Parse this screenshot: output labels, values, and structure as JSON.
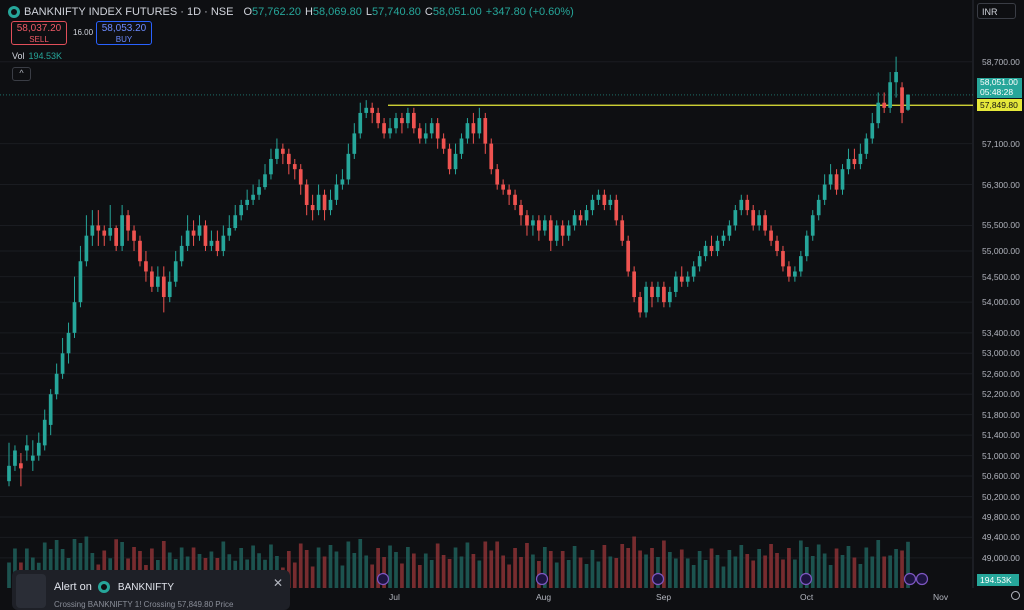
{
  "header": {
    "symbol": "BANKNIFTY INDEX FUTURES · 1D · NSE",
    "o_label": "O",
    "o": "57,762.20",
    "h_label": "H",
    "h": "58,069.80",
    "l_label": "L",
    "l": "57,740.80",
    "c_label": "C",
    "c": "58,051.00",
    "change": "+347.80 (+0.60%)"
  },
  "trade": {
    "sell_price": "58,037.20",
    "sell_label": "SELL",
    "spread": "16.00",
    "buy_price": "58,053.20",
    "buy_label": "BUY"
  },
  "volume": {
    "label": "Vol",
    "value": "194.53K"
  },
  "currency": "INR",
  "price_axis": [
    "58,700.00",
    "57,100.00",
    "56,300.00",
    "55,500.00",
    "55,000.00",
    "54,500.00",
    "54,000.00",
    "53,400.00",
    "53,000.00",
    "52,600.00",
    "52,200.00",
    "51,800.00",
    "51,400.00",
    "51,000.00",
    "50,600.00",
    "50,200.00",
    "49,800.00",
    "49,400.00",
    "49,000.00"
  ],
  "last_price_tag": {
    "price": "58,051.00",
    "countdown": "05:48:28"
  },
  "hline_tag": "57,849.80",
  "volume_tag": "194.53K",
  "months": [
    "Jul",
    "Aug",
    "Sep",
    "Oct",
    "Nov"
  ],
  "alert": {
    "title": "Alert on",
    "ticker": "BANKNIFTY",
    "subtitle": "Crossing BANKNIFTY 1! Crossing 57,849.80 Price"
  },
  "colors": {
    "up": "#26a69a",
    "down": "#ef5350",
    "hline": "#e5e83a",
    "background": "#0e0f12"
  },
  "chart_data": {
    "type": "candlestick",
    "symbol": "BANKNIFTY INDEX FUTURES",
    "interval": "1D",
    "ylim": [
      48900,
      58950
    ],
    "hline": 57849.8,
    "candles": [
      [
        50500,
        50800,
        51250,
        50400
      ],
      [
        50800,
        51100,
        51200,
        50700
      ],
      [
        50850,
        50750,
        51050,
        50400
      ],
      [
        51100,
        51200,
        51400,
        50900
      ],
      [
        50900,
        51000,
        51300,
        50700
      ],
      [
        51000,
        51250,
        51450,
        50900
      ],
      [
        51200,
        51700,
        51900,
        51100
      ],
      [
        51600,
        52200,
        52300,
        51400
      ],
      [
        52200,
        52600,
        52800,
        52100
      ],
      [
        52600,
        53000,
        53300,
        52500
      ],
      [
        53000,
        53400,
        53600,
        52800
      ],
      [
        53400,
        54000,
        54500,
        53300
      ],
      [
        54000,
        54800,
        55100,
        53900
      ],
      [
        54800,
        55300,
        55700,
        54700
      ],
      [
        55300,
        55500,
        55800,
        55100
      ],
      [
        55500,
        55400,
        55800,
        55100
      ],
      [
        55400,
        55300,
        55500,
        55100
      ],
      [
        55300,
        55450,
        55900,
        55200
      ],
      [
        55450,
        55100,
        55500,
        55000
      ],
      [
        55100,
        55700,
        55900,
        55000
      ],
      [
        55700,
        55400,
        55800,
        55200
      ],
      [
        55400,
        55200,
        55500,
        55000
      ],
      [
        55200,
        54800,
        55300,
        54700
      ],
      [
        54800,
        54600,
        55000,
        54400
      ],
      [
        54600,
        54300,
        54700,
        54200
      ],
      [
        54300,
        54500,
        54700,
        54200
      ],
      [
        54500,
        54100,
        54700,
        53800
      ],
      [
        54100,
        54400,
        54600,
        54000
      ],
      [
        54400,
        54800,
        55000,
        54300
      ],
      [
        54800,
        55100,
        55300,
        54700
      ],
      [
        55100,
        55400,
        55700,
        55000
      ],
      [
        55400,
        55300,
        55600,
        55100
      ],
      [
        55300,
        55500,
        55700,
        55200
      ],
      [
        55500,
        55100,
        55600,
        55000
      ],
      [
        55100,
        55200,
        55400,
        55000
      ],
      [
        55200,
        55000,
        55400,
        54900
      ],
      [
        55000,
        55300,
        55500,
        54900
      ],
      [
        55300,
        55450,
        55700,
        55200
      ],
      [
        55450,
        55700,
        55900,
        55400
      ],
      [
        55700,
        55900,
        56000,
        55600
      ],
      [
        55900,
        56000,
        56200,
        55800
      ],
      [
        56000,
        56100,
        56300,
        55900
      ],
      [
        56100,
        56250,
        56400,
        56000
      ],
      [
        56250,
        56500,
        56700,
        56200
      ],
      [
        56500,
        56800,
        57000,
        56400
      ],
      [
        56800,
        57000,
        57200,
        56700
      ],
      [
        57000,
        56900,
        57100,
        56700
      ],
      [
        56900,
        56700,
        57000,
        56500
      ],
      [
        56700,
        56600,
        56800,
        56400
      ],
      [
        56600,
        56300,
        56700,
        56100
      ],
      [
        56300,
        55900,
        56400,
        55700
      ],
      [
        55900,
        55800,
        56100,
        55600
      ],
      [
        55800,
        56100,
        56300,
        55700
      ],
      [
        56100,
        55800,
        56200,
        55600
      ],
      [
        55800,
        56000,
        56200,
        55700
      ],
      [
        56000,
        56300,
        56500,
        55900
      ],
      [
        56300,
        56400,
        56600,
        56200
      ],
      [
        56400,
        56900,
        57100,
        56300
      ],
      [
        56900,
        57300,
        57500,
        56800
      ],
      [
        57300,
        57700,
        57900,
        57200
      ],
      [
        57700,
        57800,
        57950,
        57600
      ],
      [
        57800,
        57700,
        57900,
        57500
      ],
      [
        57700,
        57500,
        57800,
        57400
      ],
      [
        57500,
        57300,
        57600,
        57200
      ],
      [
        57300,
        57400,
        57600,
        57200
      ],
      [
        57400,
        57600,
        57700,
        57300
      ],
      [
        57600,
        57500,
        57700,
        57300
      ],
      [
        57500,
        57700,
        57800,
        57400
      ],
      [
        57700,
        57400,
        57800,
        57300
      ],
      [
        57400,
        57200,
        57500,
        57100
      ],
      [
        57200,
        57300,
        57500,
        57100
      ],
      [
        57300,
        57500,
        57600,
        57200
      ],
      [
        57500,
        57200,
        57600,
        57000
      ],
      [
        57200,
        57000,
        57300,
        56900
      ],
      [
        57000,
        56600,
        57100,
        56500
      ],
      [
        56600,
        56900,
        57100,
        56500
      ],
      [
        56900,
        57200,
        57300,
        56800
      ],
      [
        57200,
        57500,
        57600,
        57100
      ],
      [
        57500,
        57300,
        57700,
        57100
      ],
      [
        57300,
        57600,
        57800,
        57200
      ],
      [
        57600,
        57100,
        57700,
        56900
      ],
      [
        57100,
        56600,
        57200,
        56500
      ],
      [
        56600,
        56300,
        56700,
        56200
      ],
      [
        56300,
        56200,
        56400,
        56100
      ],
      [
        56200,
        56100,
        56300,
        55900
      ],
      [
        56100,
        55900,
        56200,
        55800
      ],
      [
        55900,
        55700,
        56000,
        55500
      ],
      [
        55700,
        55500,
        55800,
        55300
      ],
      [
        55500,
        55600,
        55700,
        55300
      ],
      [
        55600,
        55400,
        55700,
        55200
      ],
      [
        55400,
        55600,
        55700,
        55300
      ],
      [
        55600,
        55200,
        55700,
        55000
      ],
      [
        55200,
        55500,
        55600,
        55100
      ],
      [
        55500,
        55300,
        55600,
        55100
      ],
      [
        55300,
        55500,
        55600,
        55200
      ],
      [
        55500,
        55700,
        55800,
        55400
      ],
      [
        55700,
        55600,
        55800,
        55500
      ],
      [
        55600,
        55800,
        55900,
        55500
      ],
      [
        55800,
        56000,
        56100,
        55700
      ],
      [
        56000,
        56100,
        56200,
        55900
      ],
      [
        56100,
        55900,
        56200,
        55800
      ],
      [
        55900,
        56000,
        56100,
        55800
      ],
      [
        56000,
        55600,
        56100,
        55500
      ],
      [
        55600,
        55200,
        55700,
        55100
      ],
      [
        55200,
        54600,
        55300,
        54500
      ],
      [
        54600,
        54100,
        54700,
        54000
      ],
      [
        54100,
        53800,
        54200,
        53700
      ],
      [
        53800,
        54300,
        54400,
        53700
      ],
      [
        54300,
        54100,
        54400,
        53900
      ],
      [
        54100,
        54300,
        54400,
        54000
      ],
      [
        54300,
        54000,
        54400,
        53900
      ],
      [
        54000,
        54200,
        54300,
        53900
      ],
      [
        54200,
        54500,
        54600,
        54100
      ],
      [
        54500,
        54400,
        54700,
        54300
      ],
      [
        54400,
        54500,
        54600,
        54300
      ],
      [
        54500,
        54700,
        54800,
        54400
      ],
      [
        54700,
        54900,
        55000,
        54600
      ],
      [
        54900,
        55100,
        55200,
        54800
      ],
      [
        55100,
        55000,
        55300,
        54900
      ],
      [
        55000,
        55200,
        55300,
        54900
      ],
      [
        55200,
        55300,
        55400,
        55100
      ],
      [
        55300,
        55500,
        55600,
        55200
      ],
      [
        55500,
        55800,
        55900,
        55400
      ],
      [
        55800,
        56000,
        56100,
        55700
      ],
      [
        56000,
        55800,
        56100,
        55700
      ],
      [
        55800,
        55500,
        55900,
        55400
      ],
      [
        55500,
        55700,
        55800,
        55400
      ],
      [
        55700,
        55400,
        55800,
        55300
      ],
      [
        55400,
        55200,
        55500,
        55100
      ],
      [
        55200,
        55000,
        55300,
        54900
      ],
      [
        55000,
        54700,
        55100,
        54600
      ],
      [
        54700,
        54500,
        54800,
        54400
      ],
      [
        54500,
        54600,
        54700,
        54400
      ],
      [
        54600,
        54900,
        55000,
        54500
      ],
      [
        54900,
        55300,
        55400,
        54800
      ],
      [
        55300,
        55700,
        55800,
        55200
      ],
      [
        55700,
        56000,
        56100,
        55600
      ],
      [
        56000,
        56300,
        56500,
        55900
      ],
      [
        56300,
        56500,
        56700,
        56200
      ],
      [
        56500,
        56200,
        56600,
        56100
      ],
      [
        56200,
        56600,
        56700,
        56100
      ],
      [
        56600,
        56800,
        57000,
        56500
      ],
      [
        56800,
        56700,
        57000,
        56600
      ],
      [
        56700,
        56900,
        57100,
        56600
      ],
      [
        56900,
        57200,
        57300,
        56800
      ],
      [
        57200,
        57500,
        57700,
        57100
      ],
      [
        57500,
        57900,
        58100,
        57400
      ],
      [
        57900,
        57800,
        58100,
        57700
      ],
      [
        57800,
        58300,
        58500,
        57700
      ],
      [
        58300,
        58500,
        58800,
        58000
      ],
      [
        58200,
        57700,
        58300,
        57500
      ],
      [
        57762.2,
        58051,
        58069.8,
        57740.8
      ]
    ]
  }
}
